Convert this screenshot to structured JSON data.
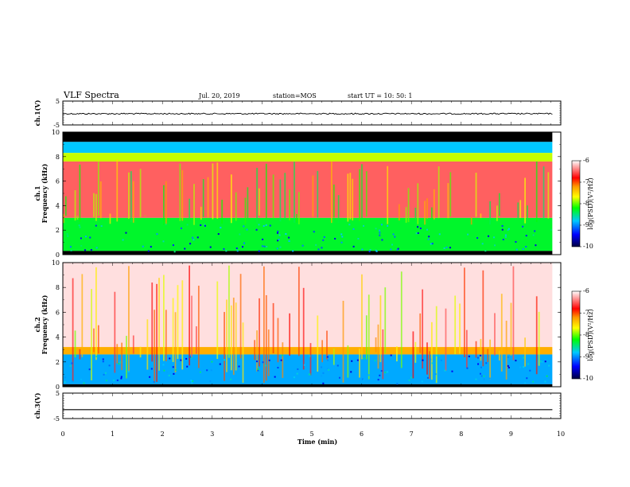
{
  "header": {
    "title": "VLF Spectra",
    "date": "Jul. 20, 2019",
    "station": "station=MOS",
    "start": "start UT =  10: 50: 1"
  },
  "chart_data": [
    {
      "type": "line",
      "name": "ch1-voltage",
      "ylabel": "ch.1(V)",
      "ylim": [
        -5,
        5
      ],
      "yticks": [
        "5",
        "-5"
      ],
      "xlim": [
        0,
        10
      ],
      "series": [
        {
          "x": [
            0,
            9.83
          ],
          "y": [
            -0.3,
            -0.3
          ]
        }
      ]
    },
    {
      "type": "heatmap",
      "name": "ch1-spectrogram",
      "ylabel": "ch.1\nFrequency (kHz)",
      "xlim": [
        0,
        10
      ],
      "ylim": [
        0,
        10
      ],
      "yticks": [
        "0",
        "2",
        "4",
        "6",
        "8",
        "10"
      ],
      "data_end_min": 9.83,
      "bands": [
        {
          "from": 9.2,
          "to": 10,
          "level": "black"
        },
        {
          "from": 8.3,
          "to": 9.2,
          "level": -8.8
        },
        {
          "from": 7.6,
          "to": 8.3,
          "level": -7.8
        },
        {
          "from": 3.0,
          "to": 7.6,
          "level": -6.5
        },
        {
          "from": 0.3,
          "to": 3.0,
          "level": -8.3
        },
        {
          "from": 0,
          "to": 0.3,
          "level": "black"
        }
      ],
      "colorbar": {
        "label": "log(PSD)(V²/Hz)",
        "range": [
          -10,
          -6
        ],
        "ticks": [
          "-6",
          "-7",
          "-8",
          "-9",
          "-10"
        ]
      }
    },
    {
      "type": "heatmap",
      "name": "ch2-spectrogram",
      "ylabel": "ch.2\nFrequency (kHz)",
      "xlim": [
        0,
        10
      ],
      "ylim": [
        0,
        10
      ],
      "yticks": [
        "0",
        "2",
        "4",
        "6",
        "8",
        "10"
      ],
      "data_end_min": 9.83,
      "bands": [
        {
          "from": 3.2,
          "to": 10,
          "level": -6.1
        },
        {
          "from": 2.6,
          "to": 3.2,
          "level": -7.3
        },
        {
          "from": 0.2,
          "to": 2.6,
          "level": -8.9
        },
        {
          "from": 0,
          "to": 0.2,
          "level": "black"
        }
      ],
      "colorbar": {
        "label": "log(PSD)(V²/Hz)",
        "range": [
          -10,
          -6
        ],
        "ticks": [
          "-6",
          "-7",
          "-8",
          "-9",
          "-10"
        ]
      }
    },
    {
      "type": "line",
      "name": "ch3-voltage",
      "ylabel": "ch.3(V)",
      "ylim": [
        -5,
        5
      ],
      "yticks": [
        "5",
        "-5"
      ],
      "xlim": [
        0,
        10
      ],
      "series": [
        {
          "x": [
            0,
            9.83
          ],
          "y": [
            -1.5,
            -1.5
          ]
        }
      ]
    }
  ],
  "xaxis": {
    "label": "Time (min)",
    "ticks": [
      "0",
      "1",
      "2",
      "3",
      "4",
      "5",
      "6",
      "7",
      "8",
      "9",
      "10"
    ]
  },
  "colors": {
    "colormap": [
      "#000040",
      "#0000ff",
      "#00c8ff",
      "#00ff00",
      "#ffff00",
      "#ff9900",
      "#ff0000",
      "#ffffff"
    ]
  }
}
